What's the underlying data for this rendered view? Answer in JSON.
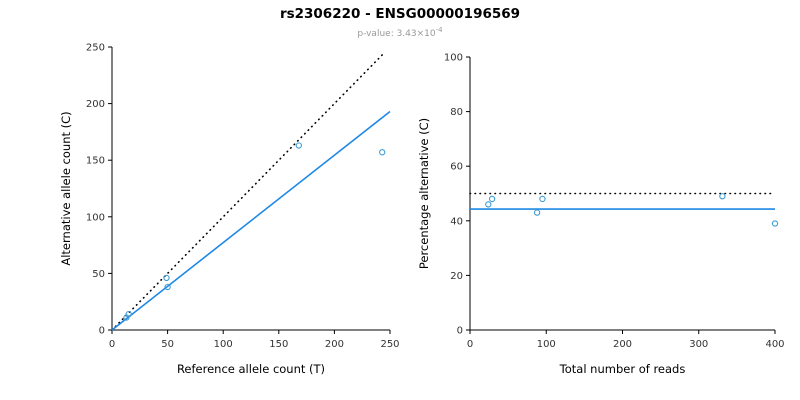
{
  "header": {
    "title": "rs2306220 - ENSG00000196569",
    "subtitle_prefix": "p-value: 3.43×10",
    "subtitle_exponent": "-4"
  },
  "colors": {
    "points": "#3d9cd4",
    "fit_line": "#1e88e5",
    "reference_line": "#000000",
    "axis": "#000000",
    "tick_label": "#333333",
    "subtitle": "#999999"
  },
  "chart_data": [
    {
      "type": "scatter",
      "title": "rs2306220 - ENSG00000196569",
      "xlabel": "Reference allele count (T)",
      "ylabel": "Alternative allele count (C)",
      "xlim": [
        0,
        250
      ],
      "ylim": [
        0,
        250
      ],
      "xticks": [
        0,
        50,
        100,
        150,
        200,
        250
      ],
      "yticks": [
        0,
        50,
        100,
        150,
        200,
        250
      ],
      "grid": false,
      "points": [
        [
          13,
          11
        ],
        [
          15,
          14
        ],
        [
          49,
          46
        ],
        [
          50,
          38
        ],
        [
          168,
          163
        ],
        [
          243,
          157
        ]
      ],
      "lines": [
        {
          "name": "identity-line",
          "x1": 0,
          "y1": 0,
          "x2": 243,
          "y2": 243,
          "style": "dotted",
          "color": "#000000",
          "width": 1.6
        },
        {
          "name": "fit-line",
          "x1": 0,
          "y1": 0,
          "x2": 250,
          "y2": 193,
          "style": "solid",
          "color": "#1e88e5",
          "width": 1.6
        }
      ]
    },
    {
      "type": "scatter",
      "title": "rs2306220 - ENSG00000196569",
      "xlabel": "Total number of reads",
      "ylabel": "Percentage alternative (C)",
      "xlim": [
        0,
        400
      ],
      "ylim": [
        0,
        100
      ],
      "xticks": [
        0,
        100,
        200,
        300,
        400
      ],
      "yticks": [
        0,
        20,
        40,
        60,
        80,
        100
      ],
      "grid": false,
      "points": [
        [
          24,
          46
        ],
        [
          29,
          48
        ],
        [
          88,
          43
        ],
        [
          95,
          48
        ],
        [
          331,
          49
        ],
        [
          400,
          39
        ]
      ],
      "lines": [
        {
          "name": "reference-percentage-line",
          "x1": 0,
          "y1": 50,
          "x2": 400,
          "y2": 50,
          "style": "dotted",
          "color": "#000000",
          "width": 1.6
        },
        {
          "name": "fit-percentage-line",
          "x1": 0,
          "y1": 44.3,
          "x2": 400,
          "y2": 44.3,
          "style": "solid",
          "color": "#1e88e5",
          "width": 1.6
        }
      ]
    }
  ]
}
